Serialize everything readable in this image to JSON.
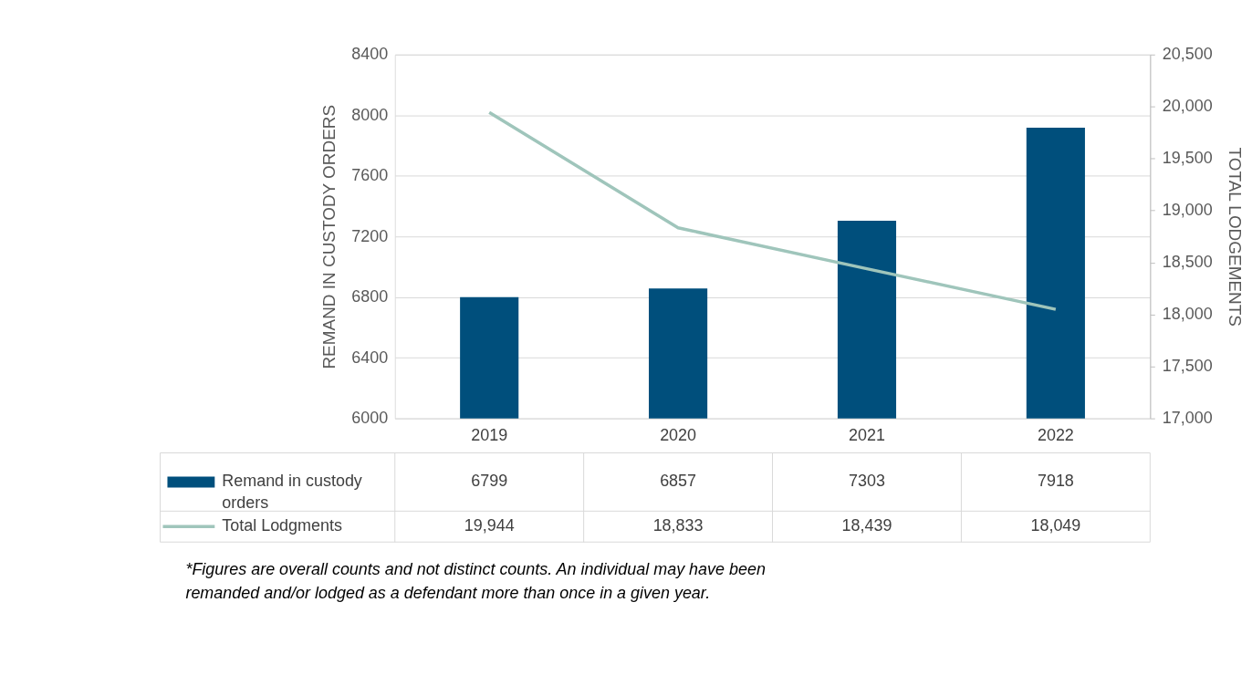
{
  "chart_data": {
    "type": "bar",
    "categories": [
      "2019",
      "2020",
      "2021",
      "2022"
    ],
    "series": [
      {
        "name": "Remand in custody orders",
        "axis": "y",
        "color": "#004f7c",
        "values": [
          6799,
          6857,
          7303,
          7918
        ],
        "value_labels": [
          "6799",
          "6857",
          "7303",
          "7918"
        ]
      },
      {
        "name": "Total Lodgments",
        "type": "line",
        "axis": "y2",
        "color": "#9fc5bb",
        "values": [
          19944,
          18833,
          18439,
          18049
        ],
        "value_labels": [
          "19,944",
          "18,833",
          "18,439",
          "18,049"
        ]
      }
    ],
    "ylabel": "REMAND IN CUSTODY ORDERS",
    "y2label": "TOTAL LODGEMENTS",
    "ylim": [
      6000,
      8400
    ],
    "yticks": [
      6000,
      6400,
      6800,
      7200,
      7600,
      8000,
      8400
    ],
    "y2lim": [
      17000,
      20500
    ],
    "y2ticks": [
      {
        "value": 17000,
        "label": "17,000"
      },
      {
        "value": 17500,
        "label": "17,500"
      },
      {
        "value": 18000,
        "label": "18,000"
      },
      {
        "value": 18500,
        "label": "18,500"
      },
      {
        "value": 19000,
        "label": "19,000"
      },
      {
        "value": 19500,
        "label": "19,500"
      },
      {
        "value": 20000,
        "label": "20,000"
      },
      {
        "value": 20500,
        "label": "20,500"
      }
    ],
    "grid": "y",
    "legend": "bottom",
    "annotations": [
      "*Figures are overall counts and not distinct counts. An individual may have been remanded and/or lodged as a defendant more than once in a given year."
    ]
  }
}
